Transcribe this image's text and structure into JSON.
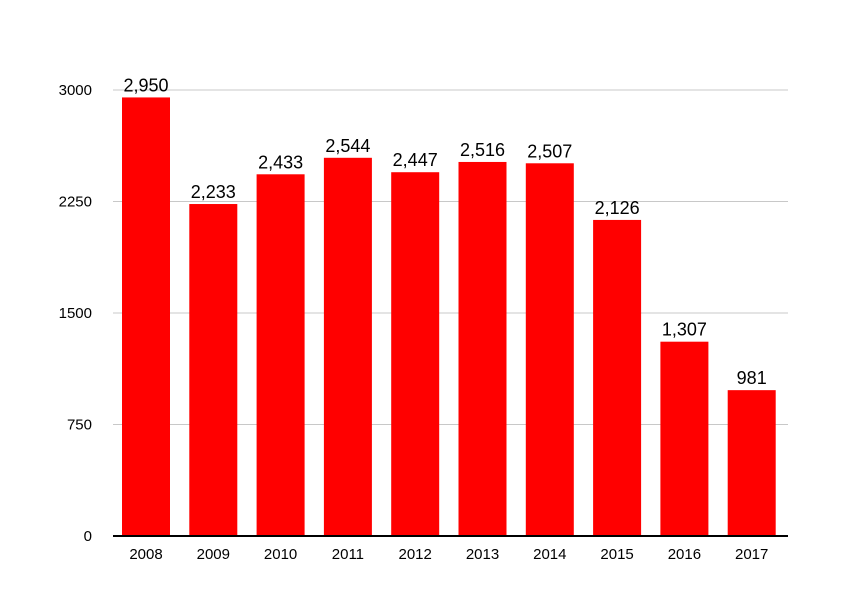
{
  "chart_data": {
    "type": "bar",
    "title": "",
    "xlabel": "",
    "ylabel": "",
    "categories": [
      "2008",
      "2009",
      "2010",
      "2011",
      "2012",
      "2013",
      "2014",
      "2015",
      "2016",
      "2017"
    ],
    "values": [
      2950,
      2233,
      2433,
      2544,
      2447,
      2516,
      2507,
      2126,
      1307,
      981
    ],
    "data_labels": [
      "2,950",
      "2,233",
      "2,433",
      "2,544",
      "2,447",
      "2,516",
      "2,507",
      "2,126",
      "1,307",
      "981"
    ],
    "ylim": [
      0,
      3000
    ],
    "yticks": [
      0,
      750,
      1500,
      2250,
      3000
    ],
    "ytick_labels": [
      "0",
      "750",
      "1500",
      "2250",
      "3000"
    ],
    "grid": true,
    "legend": "none",
    "colors": {
      "bar": "#ff0000",
      "grid": "#c8c8c8",
      "axis": "#000000",
      "text": "#000000"
    }
  }
}
